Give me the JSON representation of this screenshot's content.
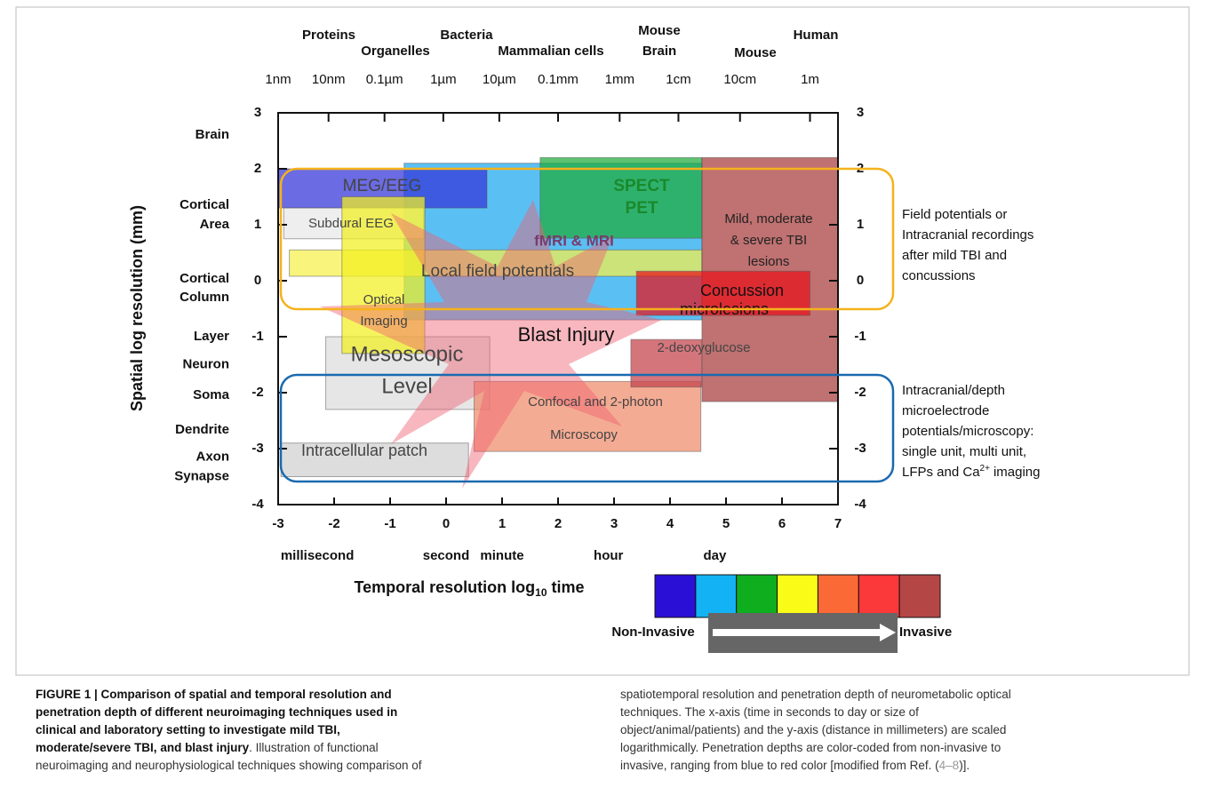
{
  "figure": {
    "organisms": [
      "Proteins",
      "Organelles",
      "Bacteria",
      "Mammalian cells",
      "Mouse",
      "Brain",
      "Mouse",
      "Human"
    ],
    "size_ticks": [
      {
        "value": -3,
        "label": "1nm"
      },
      {
        "value": -2.1,
        "label": "10nm"
      },
      {
        "value": -1.1,
        "label": "0.1µm"
      },
      {
        "value": -0.05,
        "label": "1µm"
      },
      {
        "value": 0.95,
        "label": "10µm"
      },
      {
        "value": 2,
        "label": "0.1mm"
      },
      {
        "value": 3.1,
        "label": "1mm"
      },
      {
        "value": 4.15,
        "label": "1cm"
      },
      {
        "value": 5.25,
        "label": "10cm"
      },
      {
        "value": 6.5,
        "label": "1m"
      }
    ],
    "xlim": [
      -3,
      7
    ],
    "ylim": [
      -4,
      3
    ],
    "xticks": [
      -3,
      -2,
      -1,
      0,
      1,
      2,
      3,
      4,
      5,
      6,
      7
    ],
    "yticks": [
      3,
      2,
      1,
      0,
      -1,
      -2,
      -3,
      -4
    ],
    "time_labels": [
      {
        "value": -2.3,
        "label": "millisecond"
      },
      {
        "value": 0,
        "label": "second"
      },
      {
        "value": 1,
        "label": "minute"
      },
      {
        "value": 2.9,
        "label": "hour"
      },
      {
        "value": 4.8,
        "label": "day"
      }
    ],
    "structure_labels": [
      {
        "value": 2.6,
        "label": "Brain"
      },
      {
        "value": 1.35,
        "label": "Cortical"
      },
      {
        "value": 1.0,
        "label": "Area"
      },
      {
        "value": 0.03,
        "label": "Cortical"
      },
      {
        "value": -0.3,
        "label": "Column"
      },
      {
        "value": -1.0,
        "label": "Layer"
      },
      {
        "value": -1.5,
        "label": "Neuron"
      },
      {
        "value": -2.05,
        "label": "Soma"
      },
      {
        "value": -2.67,
        "label": "Dendrite"
      },
      {
        "value": -3.15,
        "label": "Axon"
      },
      {
        "value": -3.5,
        "label": "Synapse"
      }
    ],
    "y_axis_label": "Spatial log resolution (mm)",
    "x_axis_label": {
      "text": "Temporal resolution log",
      "sub": "10",
      "tail": "time"
    },
    "regions": [
      {
        "label": "",
        "x": [
          -0.75,
          4.57
        ],
        "y": [
          2.1,
          -0.7
        ],
        "color": "#1aa8f0"
      },
      {
        "label": "MEG/EEG",
        "x": [
          -3,
          0.73
        ],
        "y": [
          2,
          1.3
        ],
        "color": "#3232d8"
      },
      {
        "label": "SPECT",
        "x": [
          1.68,
          4.57
        ],
        "y": [
          2.2,
          0.76
        ],
        "color": "#1faa3a"
      },
      {
        "label": "Subdural EEG",
        "x": [
          -2.9,
          -0.4
        ],
        "y": [
          1.3,
          0.75
        ],
        "color": "#e8e8e8"
      },
      {
        "label": "Local field potentials",
        "x": [
          -2.8,
          4.57
        ],
        "y": [
          0.55,
          0.08
        ],
        "color": "#f6f04a"
      },
      {
        "label": "Mesoscopic",
        "x": [
          -2.15,
          0.78
        ],
        "y": [
          -1,
          -2.3
        ],
        "color": "#dcdcdc"
      },
      {
        "label": "Confocal and 2-photon",
        "x": [
          0.5,
          4.55
        ],
        "y": [
          -1.8,
          -3.05
        ],
        "color": "#f08a6a"
      },
      {
        "label": "Intracellular patch",
        "x": [
          -2.95,
          0.4
        ],
        "y": [
          -2.9,
          -3.5
        ],
        "color": "#d0d0d0"
      },
      {
        "label": "Optical",
        "x": [
          -1.86,
          -0.38
        ],
        "y": [
          1.5,
          -1.3
        ],
        "color": "#f2f020"
      },
      {
        "label": "2-deoxyglucose",
        "x": [
          3.3,
          4.57
        ],
        "y": [
          -1.05,
          -1.9
        ],
        "color": "#c4404a"
      },
      {
        "label": "Mild, moderate",
        "x": [
          4.57,
          7
        ],
        "y": [
          2.2,
          -2.16
        ],
        "color": "#a83a3a"
      },
      {
        "label": "Concussion",
        "x": [
          3.4,
          6.5
        ],
        "y": [
          0.17,
          -0.62
        ],
        "color": "#e8101a"
      }
    ],
    "region_extra": {
      "spect2": "PET",
      "meso2": "Level",
      "confocal2": "Microscopy",
      "optical2": "Imaging",
      "tbi2": "& severe TBI",
      "tbi3": "lesions",
      "conc2": "microlesions",
      "fmri": "fMRI & MRI",
      "blast": "Blast Injury"
    },
    "annot_top": [
      "Field potentials or",
      "Intracranial recordings",
      "after mild TBI and",
      "concussions"
    ],
    "annot_bottom": [
      "Intracranial/depth",
      "microelectrode",
      "potentials/microscopy:",
      "single unit, multi unit,"
    ],
    "annot_last": {
      "a": "LFPs and Ca",
      "sup": "2+",
      "b": "imaging"
    },
    "scale_colors": [
      "#2a0fd6",
      "#12b2f4",
      "#0fae1e",
      "#fbfb18",
      "#fb6a36",
      "#fb383a",
      "#b54646"
    ],
    "scale_labels": {
      "left": "Non-Invasive",
      "right": "Invasive"
    },
    "caption": {
      "left_bold": [
        "FIGURE 1 | Comparison of spatial and temporal resolution and",
        "penetration depth of different neuroimaging techniques used in",
        "clinical and laboratory setting to investigate mild TBI,",
        "moderate/severe TBI, and blast injury"
      ],
      "left_tail": ". Illustration of functional",
      "left_last": "neuroimaging and neurophysiological techniques showing comparison of",
      "right": [
        "spatiotemporal resolution and penetration depth of neurometabolic optical",
        "techniques. The x-axis (time in seconds to day or size of",
        "object/animal/patients) and the y-axis (distance in millimeters) are scaled",
        "logarithmically. Penetration depths are color-coded from non-invasive to"
      ],
      "right_last": {
        "a": "invasive, ranging from blue to red color [modified from Ref. (",
        "ref": "4–8",
        "b": ")]."
      }
    }
  }
}
